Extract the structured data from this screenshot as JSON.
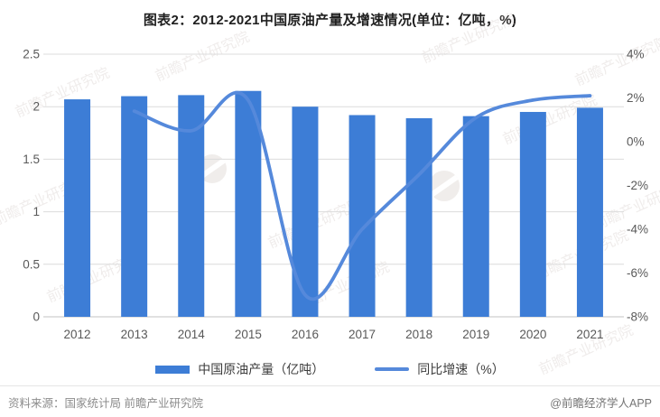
{
  "title": "图表2：2012-2021中国原油产量及增速情况(单位：亿吨，%)",
  "chart_data": {
    "type": "combo-bar-line",
    "categories": [
      "2012",
      "2013",
      "2014",
      "2015",
      "2016",
      "2017",
      "2018",
      "2019",
      "2020",
      "2021"
    ],
    "series": [
      {
        "name": "中国原油产量（亿吨）",
        "type": "bar",
        "axis": "left",
        "color": "#3d7dd6",
        "values": [
          2.07,
          2.1,
          2.11,
          2.15,
          2.0,
          1.92,
          1.89,
          1.91,
          1.95,
          1.99
        ]
      },
      {
        "name": "同比增速（%）",
        "type": "line",
        "axis": "right",
        "smooth": true,
        "color": "#5589db",
        "values": [
          null,
          1.4,
          0.5,
          1.9,
          -7.0,
          -4.0,
          -1.5,
          1.1,
          1.9,
          2.1
        ]
      }
    ],
    "left_axis": {
      "min": 0,
      "max": 2.5,
      "ticks": [
        "0",
        "0.5",
        "1",
        "1.5",
        "2",
        "2.5"
      ]
    },
    "right_axis": {
      "min": -8,
      "max": 4,
      "ticks": [
        "4%",
        "2%",
        "0%",
        "-2%",
        "-4%",
        "-6%",
        "-8%"
      ]
    },
    "grid": true,
    "legend_position": "bottom"
  },
  "legend": {
    "items": [
      {
        "label": "中国原油产量（亿吨）",
        "swatch": "bar"
      },
      {
        "label": "同比增速（%）",
        "swatch": "line"
      }
    ]
  },
  "footer": {
    "source": "资料来源：国家统计局 前瞻产业研究院",
    "brand": "@前瞻经济学人APP"
  },
  "watermark": {
    "text": "前瞻产业研究院",
    "logo": "qianzhan-swoosh-logo"
  }
}
